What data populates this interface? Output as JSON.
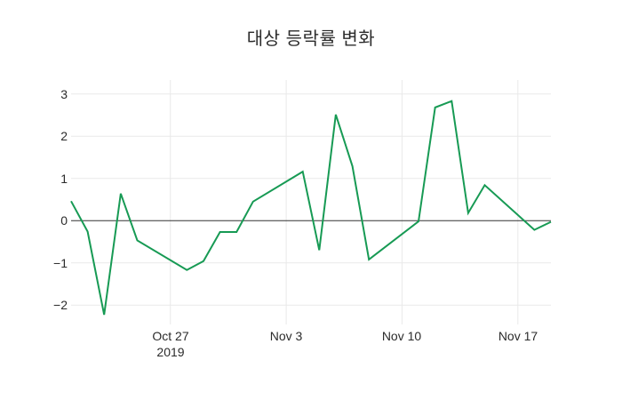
{
  "chart_data": {
    "type": "line",
    "title": "대상 등락률 변화",
    "x": [
      "2019-10-21",
      "2019-10-22",
      "2019-10-23",
      "2019-10-24",
      "2019-10-25",
      "2019-10-28",
      "2019-10-29",
      "2019-10-30",
      "2019-10-31",
      "2019-11-01",
      "2019-11-04",
      "2019-11-05",
      "2019-11-06",
      "2019-11-07",
      "2019-11-08",
      "2019-11-11",
      "2019-11-12",
      "2019-11-13",
      "2019-11-14",
      "2019-11-15",
      "2019-11-18",
      "2019-11-19"
    ],
    "series": [
      {
        "name": "등락률",
        "color": "#179a54",
        "values": [
          0.46,
          -0.26,
          -2.23,
          0.64,
          -0.47,
          -1.17,
          -0.96,
          -0.27,
          -0.27,
          0.45,
          1.16,
          -0.7,
          2.51,
          1.29,
          -0.92,
          -0.02,
          2.68,
          2.83,
          0.18,
          0.84,
          -0.22,
          -0.03
        ]
      }
    ],
    "x_ticks": [
      {
        "date": "2019-10-27",
        "label": "Oct 27",
        "sublabel": "2019"
      },
      {
        "date": "2019-11-03",
        "label": "Nov 3",
        "sublabel": ""
      },
      {
        "date": "2019-11-10",
        "label": "Nov 10",
        "sublabel": ""
      },
      {
        "date": "2019-11-17",
        "label": "Nov 17",
        "sublabel": ""
      }
    ],
    "y_ticks": [
      3,
      2,
      1,
      0,
      -1,
      -2
    ],
    "xlim": [
      "2019-10-21",
      "2019-11-19"
    ],
    "ylim": [
      -2.46,
      3.33
    ],
    "grid": true,
    "zeroline": true,
    "legend_position": "none",
    "colors": {
      "background": "#ffffff",
      "grid": "#e9e9e9",
      "zeroline": "#333333",
      "text": "#2b2b2b"
    }
  }
}
